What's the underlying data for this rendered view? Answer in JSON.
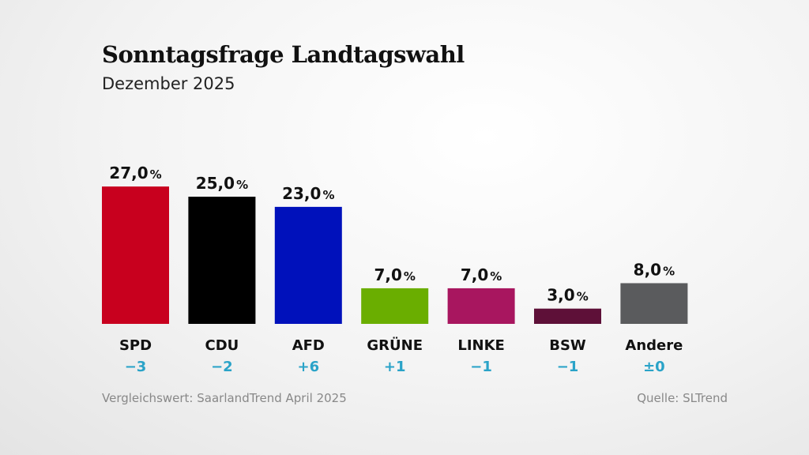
{
  "chart_data": {
    "type": "bar",
    "title": "Sonntagsfrage Landtagswahl",
    "subtitle": "Dezember 2025",
    "categories": [
      "SPD",
      "CDU",
      "AFD",
      "GRÜNE",
      "LINKE",
      "BSW",
      "Andere"
    ],
    "values": [
      27.0,
      25.0,
      23.0,
      7.0,
      7.0,
      3.0,
      8.0
    ],
    "value_labels": [
      "27,0",
      "25,0",
      "23,0",
      "7,0",
      "7,0",
      "3,0",
      "8,0"
    ],
    "unit": "%",
    "changes": [
      "−3",
      "−2",
      "+6",
      "+1",
      "−1",
      "−1",
      "±0"
    ],
    "colors": [
      "#c8001e",
      "#000000",
      "#0011bb",
      "#6aae00",
      "#a8165f",
      "#5e1038",
      "#5a5b5d"
    ],
    "change_color": "#2aa3c8",
    "grid": false,
    "comparison_note": "Vergleichswert: SaarlandTrend April 2025",
    "source": "Quelle: SLTrend"
  }
}
